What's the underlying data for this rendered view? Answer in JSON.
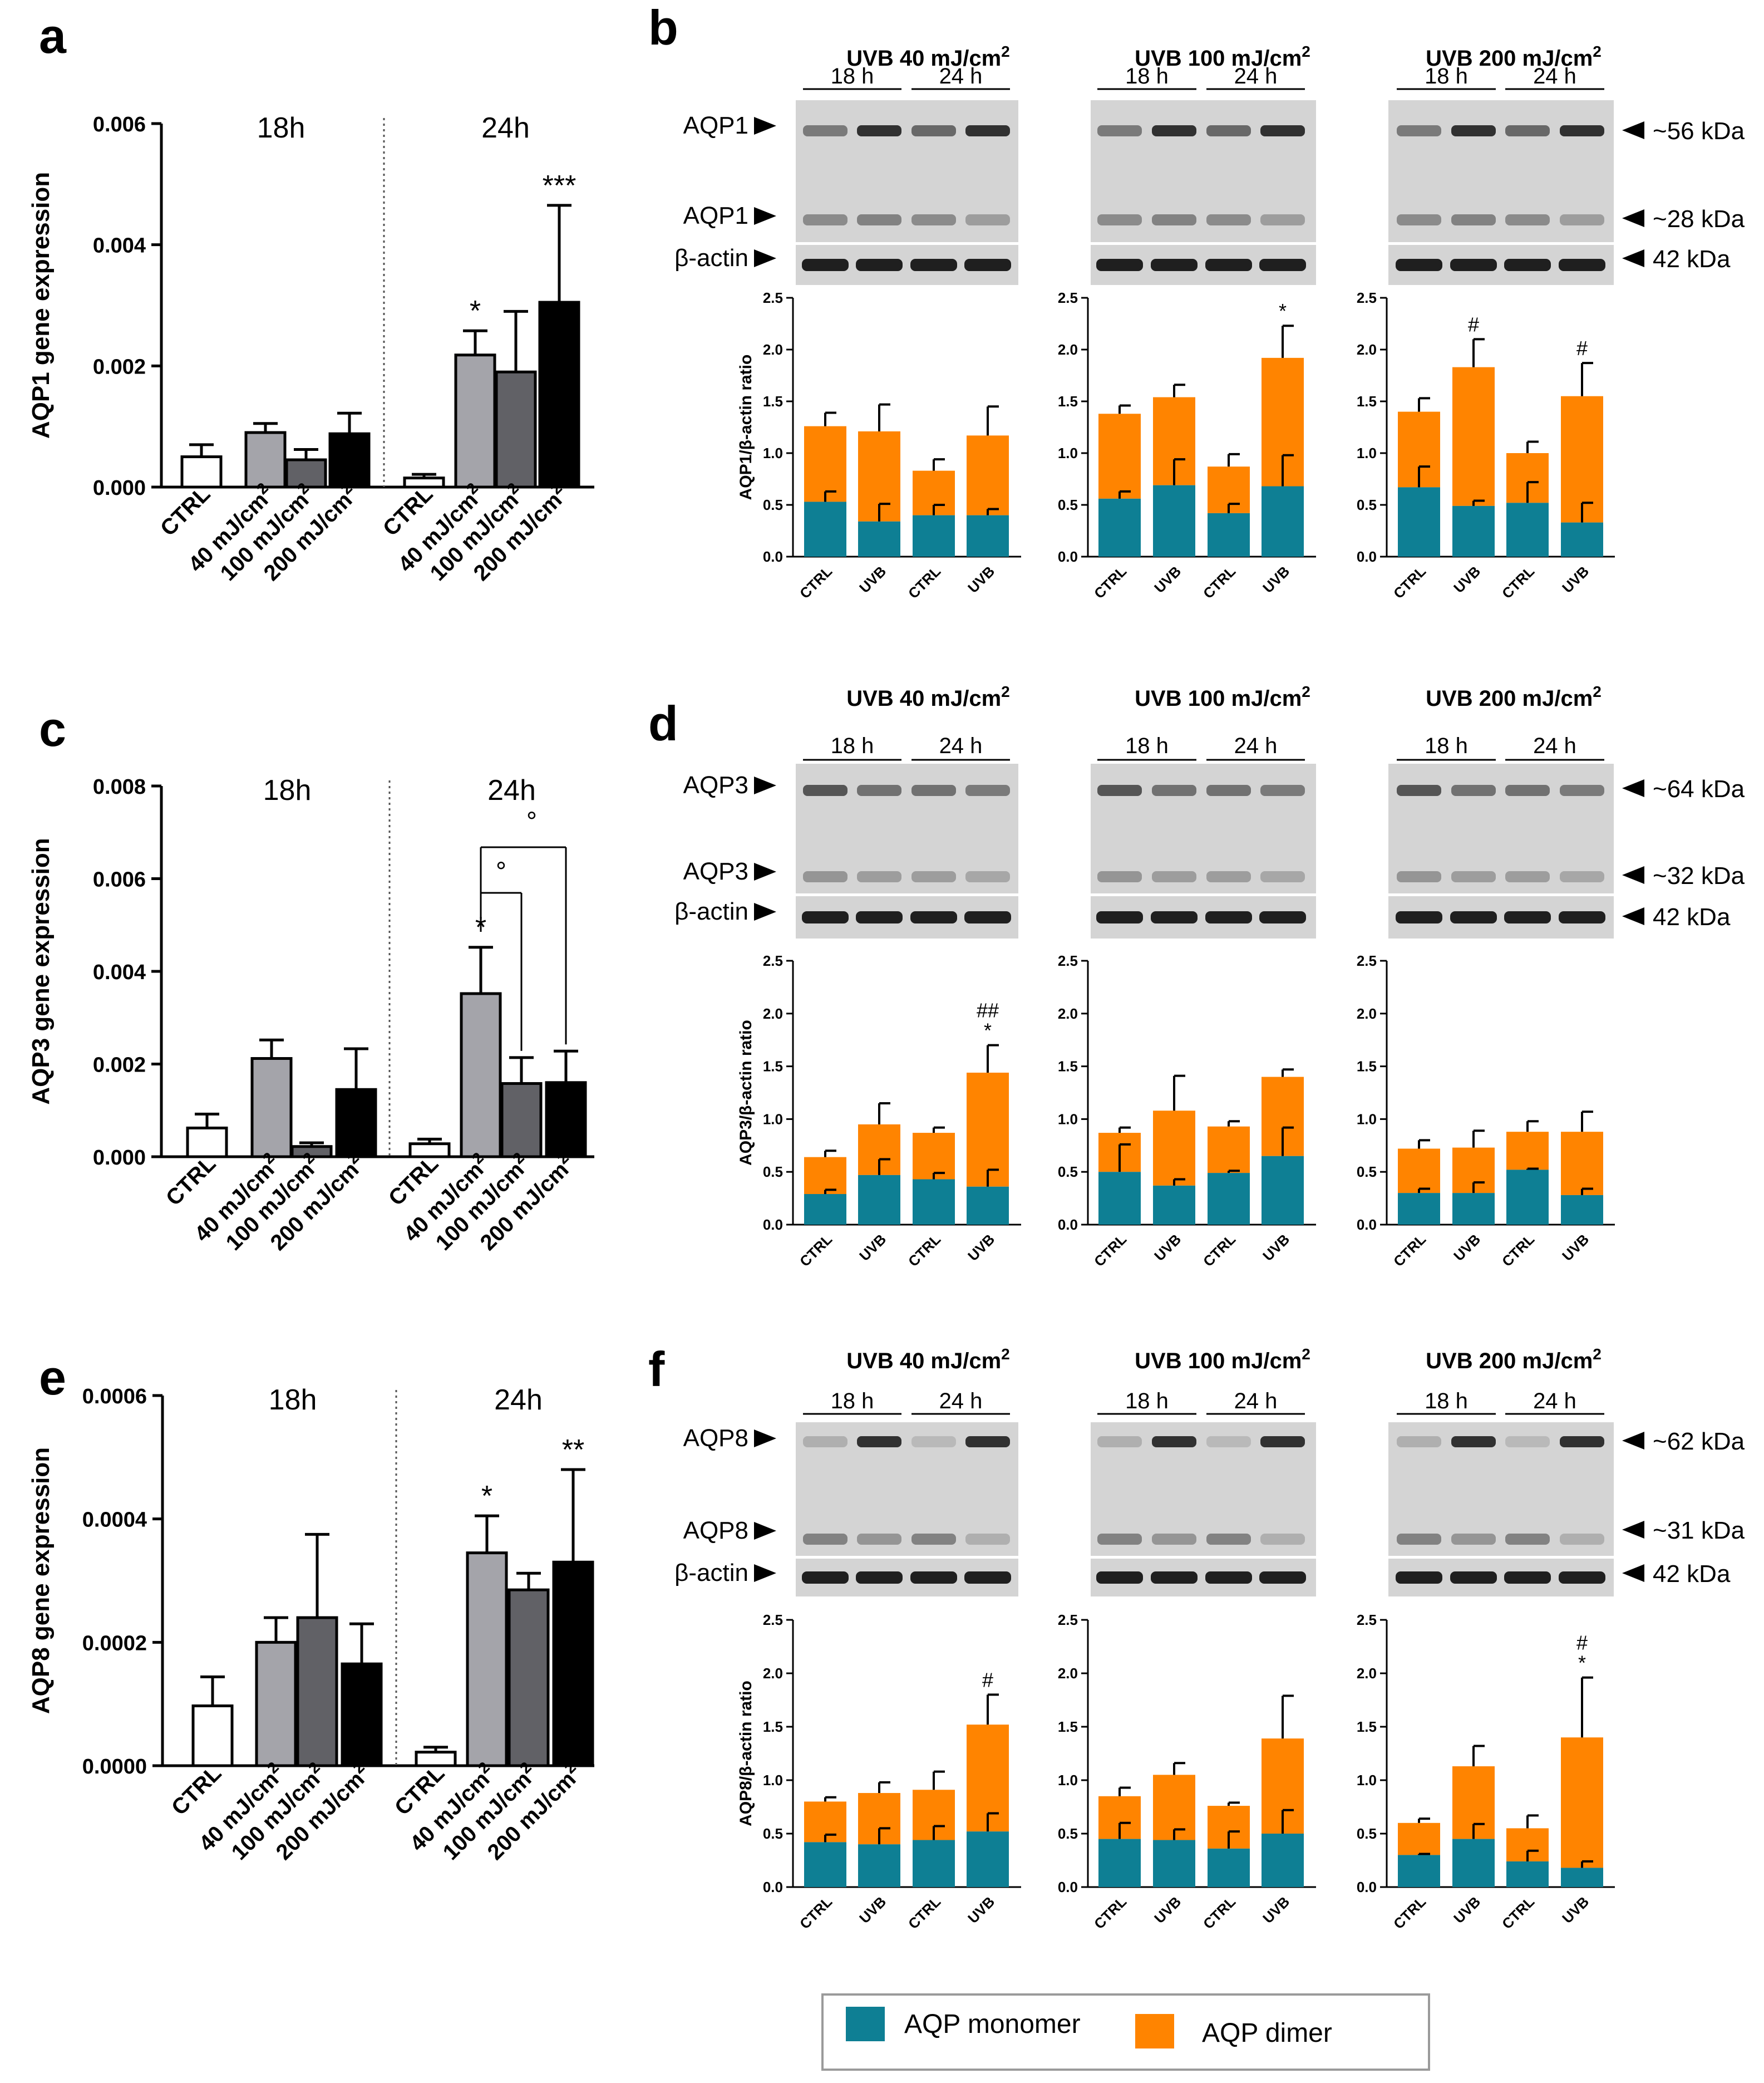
{
  "colors": {
    "monomer": "#0e7f94",
    "dimer": "#ff8400",
    "ctrl_fill": "#ffffff",
    "d40": "#a4a4aa",
    "d100": "#616166",
    "d200": "#000000",
    "blot_bg": "#d4d4d4",
    "band": "#1f1f1f"
  },
  "legend": {
    "monomer": "AQP monomer",
    "dimer": "AQP dimer"
  },
  "chart_data": [
    {
      "panel": "a",
      "type": "bar",
      "ylabel": "AQP1 gene expression",
      "ylim": [
        0,
        0.006
      ],
      "ticks": [
        "0.000",
        "0.002",
        "0.004",
        "0.006"
      ],
      "groups": [
        "18h",
        "24h"
      ],
      "categories": [
        "CTRL",
        "40 mJ/cm",
        "100 mJ/cm",
        "200 mJ/cm"
      ],
      "superscript": "2",
      "values_18h": [
        0.0005,
        0.0009,
        0.00045,
        0.00088
      ],
      "err_18h": [
        0.0002,
        0.00015,
        0.00017,
        0.00034
      ],
      "values_24h": [
        0.00015,
        0.00218,
        0.0019,
        0.00305
      ],
      "err_24h": [
        6e-05,
        0.0004,
        0.001,
        0.0016
      ],
      "stars_24h": [
        "",
        "*",
        "",
        "***"
      ]
    },
    {
      "panel": "c",
      "type": "bar",
      "ylabel": "AQP3 gene expression",
      "ylim": [
        0,
        0.008
      ],
      "ticks": [
        "0.000",
        "0.002",
        "0.004",
        "0.006",
        "0.008"
      ],
      "groups": [
        "18h",
        "24h"
      ],
      "categories": [
        "CTRL",
        "40 mJ/cm",
        "100 mJ/cm",
        "200 mJ/cm"
      ],
      "superscript": "2",
      "values_18h": [
        0.00062,
        0.00212,
        0.00022,
        0.00145
      ],
      "err_18h": [
        0.0003,
        0.0004,
        8e-05,
        0.00088
      ],
      "values_24h": [
        0.00028,
        0.00352,
        0.00158,
        0.0016
      ],
      "err_24h": [
        0.0001,
        0.001,
        0.00056,
        0.00068
      ],
      "stars_24h": [
        "",
        "*",
        "",
        ""
      ],
      "bracket_mark": "°"
    },
    {
      "panel": "e",
      "type": "bar",
      "ylabel": "AQP8 gene expression",
      "ylim": [
        0,
        0.0006
      ],
      "ticks": [
        "0.0000",
        "0.0002",
        "0.0004",
        "0.0006"
      ],
      "groups": [
        "18h",
        "24h"
      ],
      "categories": [
        "CTRL",
        "40 mJ/cm",
        "100 mJ/cm",
        "200 mJ/cm"
      ],
      "superscript": "2",
      "values_18h": [
        9.7e-05,
        0.0002,
        0.00024,
        0.000165
      ],
      "err_18h": [
        4.7e-05,
        4e-05,
        0.000135,
        6.5e-05
      ],
      "values_24h": [
        2.2e-05,
        0.000345,
        0.000285,
        0.00033
      ],
      "err_24h": [
        8e-06,
        6e-05,
        2.7e-05,
        0.00015
      ],
      "stars_24h": [
        "",
        "*",
        "",
        "**"
      ]
    },
    {
      "panel": "b",
      "type": "bar",
      "ylabel": "AQP1/β-actin ratio",
      "protein": "AQP1",
      "ylim": [
        0,
        2.5
      ],
      "ticks": [
        "0.0",
        "0.5",
        "1.0",
        "1.5",
        "2.0",
        "2.5"
      ],
      "categories": [
        "CTRL",
        "UVB",
        "CTRL",
        "UVB"
      ],
      "times": [
        "18 h",
        "24 h"
      ],
      "kda": [
        "~56 kDa",
        "~28 kDa",
        "42 kDa"
      ],
      "blots": [
        {
          "title": "UVB 40 mJ/cm",
          "monomer": [
            0.53,
            0.34,
            0.4,
            0.4
          ],
          "monomer_err": [
            0.1,
            0.17,
            0.1,
            0.06
          ],
          "total": [
            1.26,
            1.21,
            0.83,
            1.17
          ],
          "total_err": [
            0.13,
            0.26,
            0.11,
            0.28
          ],
          "marks": [
            "",
            "",
            "",
            ""
          ]
        },
        {
          "title": "UVB 100 mJ/cm",
          "monomer": [
            0.56,
            0.69,
            0.42,
            0.68
          ],
          "monomer_err": [
            0.07,
            0.25,
            0.09,
            0.3
          ],
          "total": [
            1.38,
            1.54,
            0.87,
            1.92
          ],
          "total_err": [
            0.08,
            0.12,
            0.12,
            0.31
          ],
          "marks": [
            "",
            "",
            "",
            "*"
          ]
        },
        {
          "title": "UVB 200 mJ/cm",
          "monomer": [
            0.67,
            0.49,
            0.52,
            0.33
          ],
          "monomer_err": [
            0.2,
            0.05,
            0.2,
            0.19
          ],
          "total": [
            1.4,
            1.83,
            1.0,
            1.55
          ],
          "total_err": [
            0.13,
            0.27,
            0.11,
            0.32
          ],
          "marks": [
            "",
            "#",
            "",
            "#"
          ]
        }
      ]
    },
    {
      "panel": "d",
      "type": "bar",
      "ylabel": "AQP3/β-actin ratio",
      "protein": "AQP3",
      "ylim": [
        0,
        2.5
      ],
      "ticks": [
        "0.0",
        "0.5",
        "1.0",
        "1.5",
        "2.0",
        "2.5"
      ],
      "categories": [
        "CTRL",
        "UVB",
        "CTRL",
        "UVB"
      ],
      "times": [
        "18 h",
        "24 h"
      ],
      "kda": [
        "~64 kDa",
        "~32 kDa",
        "42 kDa"
      ],
      "blots": [
        {
          "title": "UVB 40 mJ/cm",
          "monomer": [
            0.29,
            0.47,
            0.43,
            0.36
          ],
          "monomer_err": [
            0.04,
            0.15,
            0.06,
            0.16
          ],
          "total": [
            0.64,
            0.95,
            0.87,
            1.44
          ],
          "total_err": [
            0.06,
            0.2,
            0.05,
            0.26
          ],
          "marks": [
            "",
            "",
            "",
            "##|*"
          ]
        },
        {
          "title": "UVB 100 mJ/cm",
          "monomer": [
            0.5,
            0.37,
            0.49,
            0.65
          ],
          "monomer_err": [
            0.26,
            0.06,
            0.02,
            0.27
          ],
          "total": [
            0.87,
            1.08,
            0.93,
            1.4
          ],
          "total_err": [
            0.05,
            0.33,
            0.05,
            0.07
          ],
          "marks": [
            "",
            "",
            "",
            ""
          ]
        },
        {
          "title": "UVB 200 mJ/cm",
          "monomer": [
            0.3,
            0.3,
            0.52,
            0.28
          ],
          "monomer_err": [
            0.04,
            0.1,
            0.01,
            0.06
          ],
          "total": [
            0.72,
            0.73,
            0.88,
            0.88
          ],
          "total_err": [
            0.08,
            0.16,
            0.1,
            0.19
          ],
          "marks": [
            "",
            "",
            "",
            ""
          ]
        }
      ]
    },
    {
      "panel": "f",
      "type": "bar",
      "ylabel": "AQP8/β-actin ratio",
      "protein": "AQP8",
      "ylim": [
        0,
        2.5
      ],
      "ticks": [
        "0.0",
        "0.5",
        "1.0",
        "1.5",
        "2.0",
        "2.5"
      ],
      "categories": [
        "CTRL",
        "UVB",
        "CTRL",
        "UVB"
      ],
      "times": [
        "18 h",
        "24 h"
      ],
      "kda": [
        "~62 kDa",
        "~31 kDa",
        "42 kDa"
      ],
      "blots": [
        {
          "title": "UVB 40 mJ/cm",
          "monomer": [
            0.42,
            0.4,
            0.44,
            0.52
          ],
          "monomer_err": [
            0.07,
            0.15,
            0.13,
            0.17
          ],
          "total": [
            0.8,
            0.88,
            0.91,
            1.52
          ],
          "total_err": [
            0.04,
            0.1,
            0.17,
            0.28
          ],
          "marks": [
            "",
            "",
            "",
            "#"
          ]
        },
        {
          "title": "UVB 100 mJ/cm",
          "monomer": [
            0.45,
            0.44,
            0.36,
            0.5
          ],
          "monomer_err": [
            0.15,
            0.1,
            0.16,
            0.22
          ],
          "total": [
            0.85,
            1.05,
            0.76,
            1.39
          ],
          "total_err": [
            0.08,
            0.11,
            0.03,
            0.4
          ],
          "marks": [
            "",
            "",
            "",
            ""
          ]
        },
        {
          "title": "UVB 200 mJ/cm",
          "monomer": [
            0.3,
            0.45,
            0.24,
            0.18
          ],
          "monomer_err": [
            0.01,
            0.14,
            0.1,
            0.06
          ],
          "total": [
            0.6,
            1.13,
            0.55,
            1.4
          ],
          "total_err": [
            0.04,
            0.19,
            0.12,
            0.56
          ],
          "marks": [
            "",
            "",
            "",
            "#|*"
          ]
        }
      ]
    }
  ]
}
